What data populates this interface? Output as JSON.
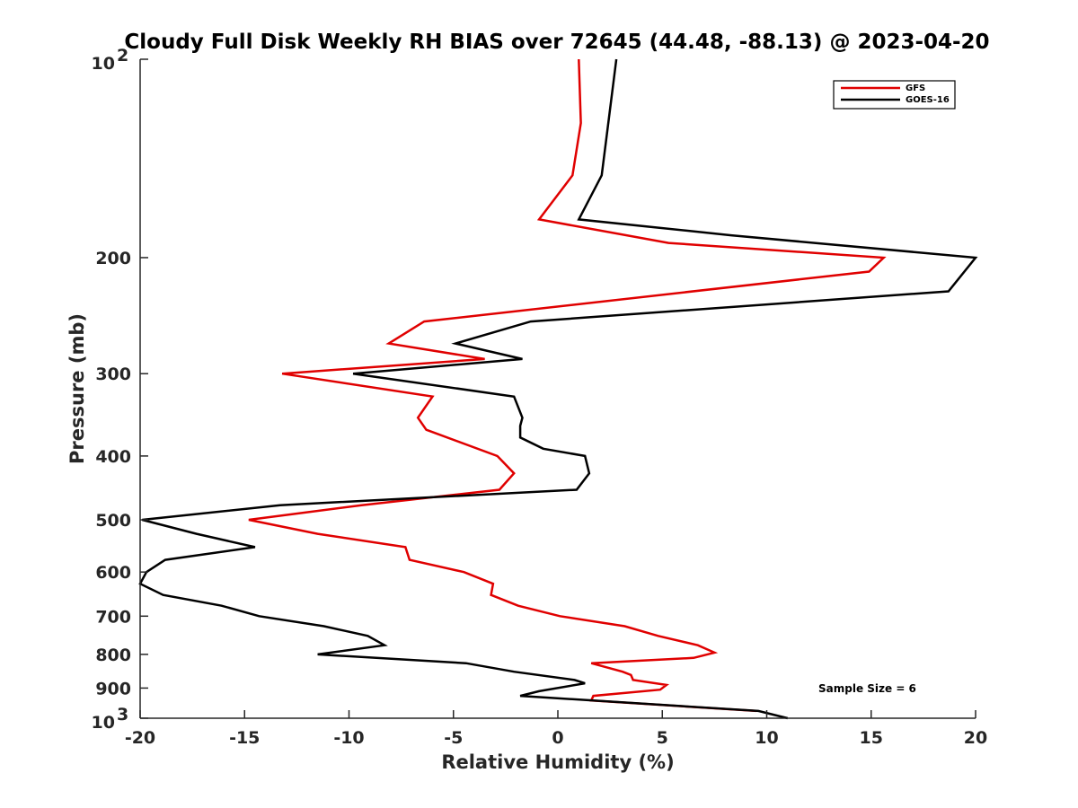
{
  "chart_data": {
    "type": "line",
    "title": "Cloudy Full Disk Weekly RH BIAS over 72645 (44.48, -88.13) @ 2023-04-20",
    "xlabel": "Relative Humidity (%)",
    "ylabel": "Pressure (mb)",
    "xlim": [
      -20,
      20
    ],
    "ylim": [
      100,
      1000
    ],
    "yscale": "log",
    "y_reversed": true,
    "grid": false,
    "legend_position": "top-right",
    "x_ticks": [
      "-20",
      "-15",
      "-10",
      "-5",
      "0",
      "5",
      "10",
      "15",
      "20"
    ],
    "y_ticks": [
      "200",
      "300",
      "400",
      "500",
      "600",
      "700",
      "800",
      "900"
    ],
    "y_tick_values": [
      200,
      300,
      400,
      500,
      600,
      700,
      800,
      900
    ],
    "y_tick_min_base": "10",
    "y_tick_min_exp": "2",
    "y_tick_max_base": "10",
    "y_tick_max_exp": "3",
    "annotation": "Sample Size = 6",
    "colors": {
      "GFS": "#e00000",
      "GOES-16": "#000000"
    },
    "series": [
      {
        "name": "GFS",
        "points": [
          [
            1.0,
            100
          ],
          [
            1.1,
            125
          ],
          [
            0.7,
            150
          ],
          [
            -0.9,
            175
          ],
          [
            5.3,
            190
          ],
          [
            15.6,
            200
          ],
          [
            14.9,
            210
          ],
          [
            -6.4,
            250
          ],
          [
            -8.1,
            270
          ],
          [
            -3.5,
            285
          ],
          [
            -13.2,
            300
          ],
          [
            -6.0,
            325
          ],
          [
            -6.7,
            350
          ],
          [
            -6.3,
            365
          ],
          [
            -2.9,
            400
          ],
          [
            -2.1,
            425
          ],
          [
            -2.8,
            450
          ],
          [
            -9.4,
            475
          ],
          [
            -14.8,
            500
          ],
          [
            -11.5,
            525
          ],
          [
            -7.3,
            550
          ],
          [
            -7.1,
            575
          ],
          [
            -4.5,
            600
          ],
          [
            -3.1,
            625
          ],
          [
            -3.2,
            650
          ],
          [
            -1.9,
            675
          ],
          [
            0.1,
            700
          ],
          [
            3.2,
            725
          ],
          [
            4.8,
            750
          ],
          [
            6.7,
            775
          ],
          [
            7.5,
            795
          ],
          [
            6.5,
            810
          ],
          [
            1.6,
            825
          ],
          [
            3.1,
            850
          ],
          [
            3.5,
            860
          ],
          [
            3.6,
            875
          ],
          [
            5.2,
            890
          ],
          [
            4.9,
            905
          ],
          [
            1.7,
            925
          ],
          [
            1.6,
            940
          ],
          [
            9.5,
            975
          ]
        ]
      },
      {
        "name": "GOES-16",
        "points": [
          [
            2.8,
            100
          ],
          [
            2.1,
            150
          ],
          [
            1.0,
            175
          ],
          [
            8.3,
            185
          ],
          [
            20.0,
            200
          ],
          [
            18.7,
            225
          ],
          [
            -1.3,
            250
          ],
          [
            -4.9,
            270
          ],
          [
            -1.7,
            285
          ],
          [
            -9.8,
            300
          ],
          [
            -2.1,
            325
          ],
          [
            -1.7,
            350
          ],
          [
            -1.8,
            360
          ],
          [
            -1.8,
            375
          ],
          [
            -0.7,
            390
          ],
          [
            1.3,
            400
          ],
          [
            1.5,
            425
          ],
          [
            0.9,
            450
          ],
          [
            -13.3,
            475
          ],
          [
            -19.9,
            500
          ],
          [
            -17.3,
            525
          ],
          [
            -14.5,
            550
          ],
          [
            -18.8,
            575
          ],
          [
            -19.7,
            600
          ],
          [
            -20.0,
            625
          ],
          [
            -18.9,
            650
          ],
          [
            -16.1,
            675
          ],
          [
            -14.3,
            700
          ],
          [
            -11.2,
            725
          ],
          [
            -9.1,
            750
          ],
          [
            -8.3,
            775
          ],
          [
            -11.5,
            800
          ],
          [
            -4.4,
            825
          ],
          [
            -2.1,
            850
          ],
          [
            0.8,
            875
          ],
          [
            1.3,
            885
          ],
          [
            -0.9,
            910
          ],
          [
            -1.8,
            925
          ],
          [
            9.6,
            975
          ],
          [
            11.0,
            1000
          ]
        ]
      }
    ]
  }
}
